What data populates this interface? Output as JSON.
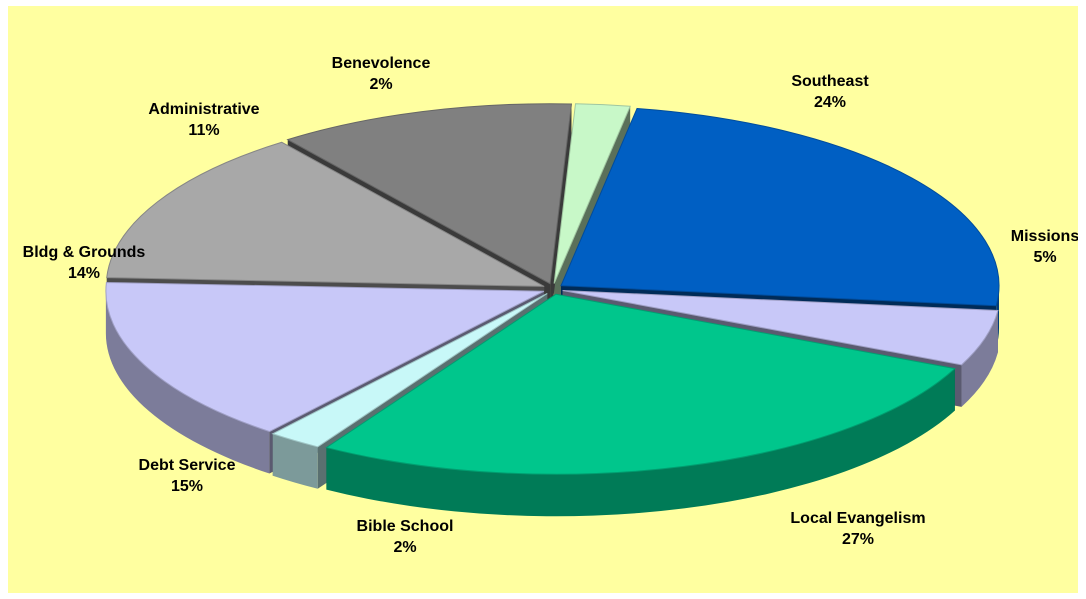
{
  "chart_data": {
    "type": "pie",
    "style": "3d-exploded",
    "background_color": "#ffffa0",
    "slices": [
      {
        "label": "Southeast",
        "value": 24,
        "value_label": "24%",
        "color": "#005fc3"
      },
      {
        "label": "Missions",
        "value": 5,
        "value_label": "5%",
        "color": "#c8c8f8"
      },
      {
        "label": "Local Evangelism",
        "value": 27,
        "value_label": "27%",
        "color": "#00c68c"
      },
      {
        "label": "Bible School",
        "value": 2,
        "value_label": "2%",
        "color": "#c8f8f8"
      },
      {
        "label": "Debt Service",
        "value": 15,
        "value_label": "15%",
        "color": "#c8c8f8"
      },
      {
        "label": "Bldg & Grounds",
        "value": 14,
        "value_label": "14%",
        "color": "#a8a8a8"
      },
      {
        "label": "Administrative",
        "value": 11,
        "value_label": "11%",
        "color": "#808080"
      },
      {
        "label": "Benevolence",
        "value": 2,
        "value_label": "2%",
        "color": "#c8f8c8"
      }
    ]
  }
}
